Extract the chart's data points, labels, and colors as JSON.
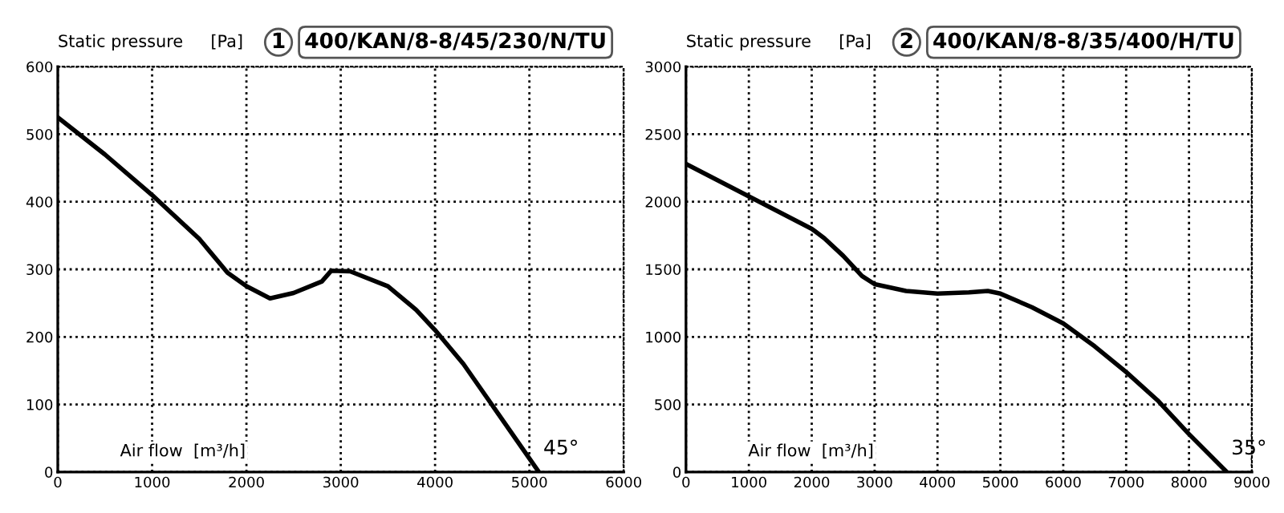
{
  "chart_data": [
    {
      "type": "line",
      "title": "1",
      "subtitle": "400/KAN/8-8/45/230/N/TU",
      "ylabel": "Static pressure",
      "xlabel": "Air flow  [m³/h]",
      "annotations": [
        "[Pa]",
        {
          "text": "45°",
          "x": 5100,
          "y": 0
        }
      ],
      "x": [
        0,
        500,
        1000,
        1500,
        1800,
        2000,
        2250,
        2500,
        2800,
        2900,
        3100,
        3500,
        3800,
        4000,
        4300,
        4600,
        4900,
        5100
      ],
      "series": [
        {
          "color": "#000000",
          "values": [
            525,
            470,
            410,
            345,
            295,
            275,
            257,
            265,
            282,
            298,
            297,
            275,
            240,
            210,
            160,
            100,
            40,
            0
          ]
        }
      ],
      "xlim": [
        0,
        6000
      ],
      "ylim": [
        0,
        600
      ],
      "xticks": [
        0,
        1000,
        2000,
        3000,
        4000,
        5000,
        6000
      ],
      "yticks": [
        0,
        100,
        200,
        300,
        400,
        500,
        600
      ],
      "grid": true,
      "line_style": "solid",
      "marker": "none"
    },
    {
      "type": "line",
      "title": "2",
      "subtitle": "400/KAN/8-8/35/400/H/TU",
      "ylabel": "Static pressure",
      "xlabel": "Air flow  [m³/h]",
      "annotations": [
        "[Pa]",
        {
          "text": "35°",
          "x": 8600,
          "y": 0
        }
      ],
      "x": [
        0,
        1000,
        2000,
        2200,
        2500,
        2800,
        3000,
        3500,
        4000,
        4500,
        4800,
        5000,
        5500,
        6000,
        6500,
        7000,
        7500,
        8000,
        8600
      ],
      "series": [
        {
          "color": "#000000",
          "values": [
            2280,
            2040,
            1800,
            1730,
            1600,
            1450,
            1390,
            1340,
            1320,
            1330,
            1340,
            1320,
            1220,
            1100,
            930,
            740,
            530,
            280,
            0
          ]
        }
      ],
      "xlim": [
        0,
        9000
      ],
      "ylim": [
        0,
        3000
      ],
      "xticks": [
        0,
        1000,
        2000,
        3000,
        4000,
        5000,
        6000,
        7000,
        8000,
        9000
      ],
      "yticks": [
        0,
        500,
        1000,
        1500,
        2000,
        2500,
        3000
      ],
      "grid": true,
      "line_style": "solid",
      "marker": "none"
    }
  ]
}
